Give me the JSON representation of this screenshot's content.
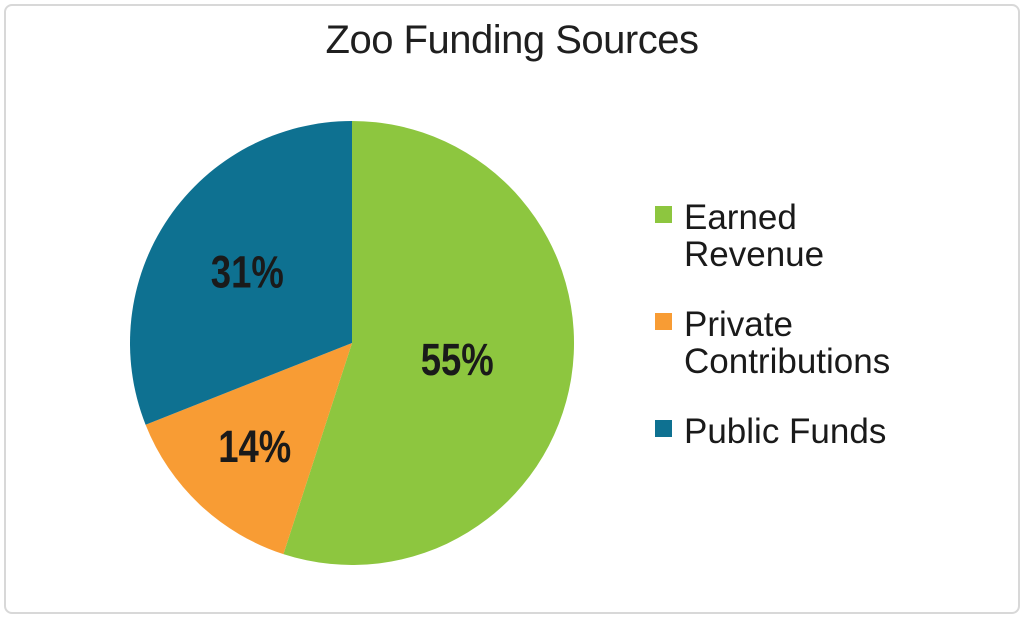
{
  "title": "Zoo Funding Sources",
  "chart_data": {
    "type": "pie",
    "title": "Zoo Funding Sources",
    "categories": [
      "Earned Revenue",
      "Private Contributions",
      "Public Funds"
    ],
    "values": [
      55,
      14,
      31
    ],
    "value_labels": [
      "55%",
      "14%",
      "31%"
    ],
    "colors": [
      "#8DC63F",
      "#F89C34",
      "#0E7191"
    ],
    "start_angle_deg": 0,
    "direction": "clockwise",
    "legend_position": "right",
    "slice_label_color": "#1A1A1A",
    "background": "#FFFFFF",
    "frame_border_color": "#D8D8D8"
  },
  "legend": {
    "items": [
      {
        "id": "earned-revenue",
        "lines": [
          "Earned",
          "Revenue"
        ],
        "color": "#8DC63F"
      },
      {
        "id": "private-contributions",
        "lines": [
          "Private",
          "Contributions"
        ],
        "color": "#F89C34"
      },
      {
        "id": "public-funds",
        "lines": [
          "Public Funds"
        ],
        "color": "#0E7191"
      }
    ]
  }
}
